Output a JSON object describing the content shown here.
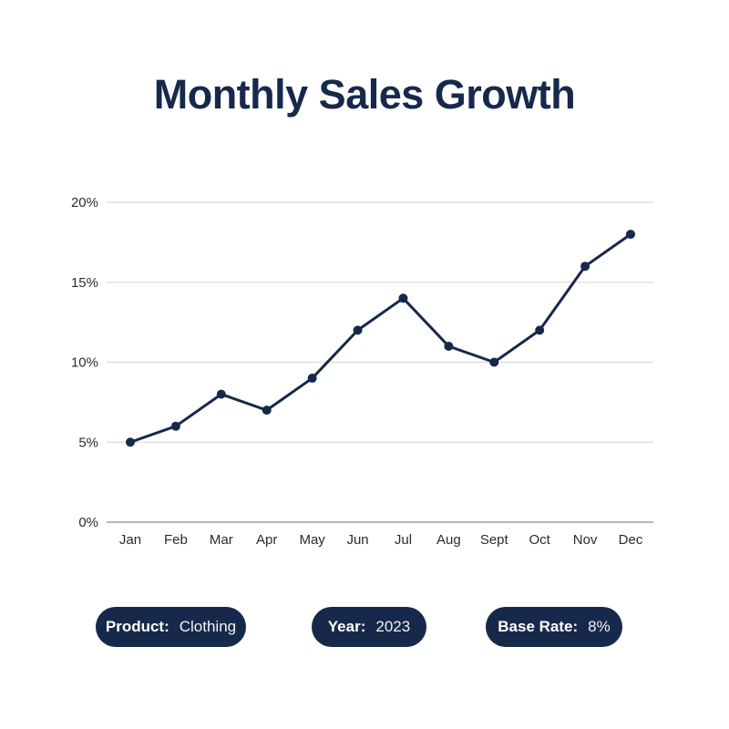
{
  "title": "Monthly Sales Growth",
  "colors": {
    "navy": "#17294B",
    "line": "#17294B",
    "grid": "#DBDBDB",
    "axis": "#9E9E9E",
    "tick_text": "#2B2B2B",
    "background": "#FFFFFF"
  },
  "chart_data": {
    "type": "line",
    "title": "Monthly Sales Growth",
    "categories": [
      "Jan",
      "Feb",
      "Mar",
      "Apr",
      "May",
      "Jun",
      "Jul",
      "Aug",
      "Sept",
      "Oct",
      "Nov",
      "Dec"
    ],
    "series": [
      {
        "name": "Monthly sales growth (%)",
        "values": [
          5,
          6,
          8,
          7,
          9,
          12,
          14,
          11,
          10,
          12,
          16,
          18
        ]
      }
    ],
    "xlabel": "",
    "ylabel": "",
    "ylim": [
      0,
      20
    ],
    "yticks": [
      0,
      5,
      10,
      15,
      20
    ],
    "ytick_labels": [
      "0%",
      "5%",
      "10%",
      "15%",
      "20%"
    ],
    "grid": true,
    "legend": false
  },
  "badges": [
    {
      "label": "Product:",
      "value": "Clothing"
    },
    {
      "label": "Year:",
      "value": "2023"
    },
    {
      "label": "Base Rate:",
      "value": "8%"
    }
  ]
}
